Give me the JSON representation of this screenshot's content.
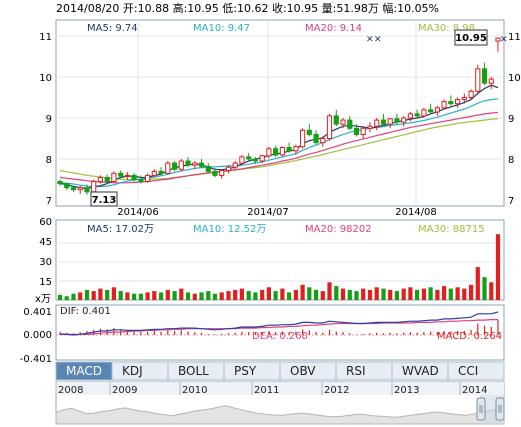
{
  "header": {
    "summary": "2014/08/20 开:10.88 高:10.95 低:10.62 收:10.95 量:51.98万 幅:10.05%"
  },
  "price_panel": {
    "ma_labels": [
      "MA5: 9.74",
      "MA10: 9.47",
      "MA20: 9.14",
      "MA30: 8.98"
    ],
    "ma_colors": [
      "#1d3b6b",
      "#2ab0c8",
      "#e0407a",
      "#9cc23a"
    ],
    "y_ticks": [
      "11",
      "10",
      "9",
      "8",
      "7"
    ],
    "x_ticks": [
      "2014/06",
      "2014/07",
      "2014/08"
    ],
    "callout_high": "10.95",
    "callout_low": "7.13"
  },
  "volume_panel": {
    "ma_labels": [
      "MA5: 17.02万",
      "MA10: 12.52万",
      "MA20: 98202",
      "MA30: 88715"
    ],
    "y_ticks": [
      "60",
      "45",
      "30",
      "15"
    ],
    "unit": "x万"
  },
  "macd_panel": {
    "labels": [
      "DIF: 0.401",
      "DEA: 0.268",
      "MACD: 0.264"
    ],
    "y_ticks": [
      "0.401",
      "0.000",
      "-0.401"
    ]
  },
  "tabs": [
    "MACD",
    "KDJ",
    "BOLL",
    "PSY",
    "OBV",
    "RSI",
    "WVAD",
    "CCI"
  ],
  "active_tab": "MACD",
  "navigator": {
    "years": [
      "2008",
      "2009",
      "2010",
      "2011",
      "2012",
      "2013",
      "2014"
    ]
  },
  "colors": {
    "up": "#e02020",
    "down": "#14a014",
    "grid": "#dfe6ec",
    "border": "#8fa3b5",
    "tab_active": "#5a86b5",
    "tab_bg": "#e6edf4"
  },
  "chart_data": {
    "type": "candlestick",
    "x_range": [
      "2014/05/20",
      "2014/08/20"
    ],
    "ylim": [
      7,
      11
    ],
    "candles": [
      [
        7.45,
        7.5,
        7.35,
        7.4
      ],
      [
        7.4,
        7.42,
        7.25,
        7.3
      ],
      [
        7.3,
        7.35,
        7.2,
        7.25
      ],
      [
        7.25,
        7.35,
        7.15,
        7.3
      ],
      [
        7.3,
        7.38,
        7.13,
        7.2
      ],
      [
        7.2,
        7.5,
        7.18,
        7.45
      ],
      [
        7.45,
        7.6,
        7.4,
        7.55
      ],
      [
        7.55,
        7.62,
        7.4,
        7.45
      ],
      [
        7.45,
        7.7,
        7.42,
        7.65
      ],
      [
        7.65,
        7.72,
        7.52,
        7.58
      ],
      [
        7.58,
        7.68,
        7.5,
        7.6
      ],
      [
        7.6,
        7.65,
        7.45,
        7.5
      ],
      [
        7.5,
        7.6,
        7.4,
        7.45
      ],
      [
        7.45,
        7.65,
        7.42,
        7.6
      ],
      [
        7.6,
        7.75,
        7.55,
        7.7
      ],
      [
        7.7,
        7.8,
        7.6,
        7.65
      ],
      [
        7.65,
        7.95,
        7.62,
        7.9
      ],
      [
        7.9,
        7.95,
        7.7,
        7.75
      ],
      [
        7.75,
        8.0,
        7.7,
        7.95
      ],
      [
        7.95,
        8.05,
        7.8,
        7.85
      ],
      [
        7.85,
        7.95,
        7.75,
        7.9
      ],
      [
        7.9,
        8.0,
        7.78,
        7.82
      ],
      [
        7.82,
        7.9,
        7.65,
        7.7
      ],
      [
        7.7,
        7.78,
        7.55,
        7.6
      ],
      [
        7.6,
        7.75,
        7.52,
        7.72
      ],
      [
        7.72,
        7.85,
        7.65,
        7.8
      ],
      [
        7.8,
        7.95,
        7.75,
        7.9
      ],
      [
        7.9,
        8.1,
        7.85,
        8.05
      ],
      [
        8.05,
        8.15,
        7.95,
        8.0
      ],
      [
        8.0,
        8.05,
        7.88,
        7.95
      ],
      [
        7.95,
        8.1,
        7.9,
        8.08
      ],
      [
        8.08,
        8.3,
        8.02,
        8.25
      ],
      [
        8.25,
        8.32,
        8.05,
        8.1
      ],
      [
        8.1,
        8.3,
        8.05,
        8.28
      ],
      [
        8.28,
        8.4,
        8.15,
        8.2
      ],
      [
        8.2,
        8.35,
        8.1,
        8.3
      ],
      [
        8.3,
        8.75,
        8.25,
        8.7
      ],
      [
        8.7,
        8.85,
        8.55,
        8.6
      ],
      [
        8.6,
        8.7,
        8.35,
        8.4
      ],
      [
        8.4,
        8.55,
        8.3,
        8.5
      ],
      [
        8.5,
        9.1,
        8.45,
        9.05
      ],
      [
        9.05,
        9.2,
        8.8,
        8.85
      ],
      [
        8.85,
        9.0,
        8.75,
        8.95
      ],
      [
        8.95,
        9.05,
        8.7,
        8.75
      ],
      [
        8.75,
        8.85,
        8.55,
        8.6
      ],
      [
        8.6,
        8.8,
        8.5,
        8.75
      ],
      [
        8.75,
        8.9,
        8.65,
        8.8
      ],
      [
        8.8,
        9.0,
        8.7,
        8.95
      ],
      [
        8.95,
        9.1,
        8.8,
        8.85
      ],
      [
        8.85,
        9.0,
        8.75,
        8.98
      ],
      [
        8.98,
        9.1,
        8.85,
        8.9
      ],
      [
        8.9,
        9.05,
        8.8,
        9.0
      ],
      [
        9.0,
        9.15,
        8.92,
        9.1
      ],
      [
        9.1,
        9.2,
        9.0,
        9.05
      ],
      [
        9.05,
        9.25,
        9.0,
        9.2
      ],
      [
        9.2,
        9.35,
        9.1,
        9.15
      ],
      [
        9.15,
        9.3,
        9.05,
        9.25
      ],
      [
        9.25,
        9.45,
        9.2,
        9.4
      ],
      [
        9.4,
        9.55,
        9.3,
        9.35
      ],
      [
        9.35,
        9.5,
        9.25,
        9.45
      ],
      [
        9.45,
        9.6,
        9.35,
        9.5
      ],
      [
        9.5,
        9.7,
        9.45,
        9.65
      ],
      [
        9.65,
        10.3,
        9.6,
        10.2
      ],
      [
        10.2,
        10.35,
        9.8,
        9.85
      ],
      [
        9.85,
        10.0,
        9.7,
        9.95
      ],
      [
        10.88,
        10.95,
        10.62,
        10.95
      ]
    ],
    "ma": {
      "MA5": [
        7.4,
        7.38,
        7.33,
        7.3,
        7.28,
        7.32,
        7.35,
        7.4,
        7.48,
        7.55,
        7.58,
        7.58,
        7.55,
        7.55,
        7.6,
        7.63,
        7.72,
        7.78,
        7.83,
        7.85,
        7.88,
        7.86,
        7.8,
        7.75,
        7.74,
        7.76,
        7.8,
        7.88,
        7.95,
        8.0,
        8.03,
        8.09,
        8.12,
        8.15,
        8.19,
        8.22,
        8.37,
        8.45,
        8.48,
        8.52,
        8.65,
        8.73,
        8.8,
        8.82,
        8.8,
        8.78,
        8.75,
        8.78,
        8.82,
        8.86,
        8.9,
        8.94,
        8.97,
        9.0,
        9.04,
        9.1,
        9.15,
        9.22,
        9.27,
        9.32,
        9.38,
        9.45,
        9.6,
        9.72,
        9.8,
        9.74
      ],
      "MA10": [
        7.42,
        7.41,
        7.39,
        7.36,
        7.34,
        7.33,
        7.33,
        7.34,
        7.37,
        7.42,
        7.46,
        7.49,
        7.51,
        7.53,
        7.56,
        7.59,
        7.63,
        7.67,
        7.71,
        7.74,
        7.77,
        7.79,
        7.8,
        7.81,
        7.82,
        7.83,
        7.84,
        7.85,
        7.87,
        7.9,
        7.93,
        7.97,
        8.01,
        8.05,
        8.09,
        8.13,
        8.21,
        8.28,
        8.34,
        8.4,
        8.47,
        8.54,
        8.6,
        8.65,
        8.69,
        8.72,
        8.75,
        8.77,
        8.79,
        8.82,
        8.84,
        8.86,
        8.88,
        8.91,
        8.94,
        8.98,
        9.02,
        9.07,
        9.12,
        9.17,
        9.22,
        9.28,
        9.36,
        9.42,
        9.45,
        9.47
      ],
      "MA20": [
        7.55,
        7.53,
        7.51,
        7.49,
        7.47,
        7.45,
        7.44,
        7.43,
        7.42,
        7.42,
        7.42,
        7.43,
        7.44,
        7.45,
        7.47,
        7.49,
        7.51,
        7.54,
        7.56,
        7.59,
        7.62,
        7.64,
        7.66,
        7.68,
        7.7,
        7.72,
        7.74,
        7.76,
        7.79,
        7.82,
        7.85,
        7.88,
        7.91,
        7.95,
        7.98,
        8.02,
        8.07,
        8.12,
        8.16,
        8.21,
        8.26,
        8.31,
        8.36,
        8.41,
        8.45,
        8.49,
        8.53,
        8.57,
        8.61,
        8.65,
        8.69,
        8.73,
        8.77,
        8.8,
        8.83,
        8.86,
        8.89,
        8.92,
        8.95,
        8.98,
        9.01,
        9.04,
        9.07,
        9.1,
        9.12,
        9.14
      ],
      "MA30": [
        7.72,
        7.69,
        7.66,
        7.63,
        7.6,
        7.58,
        7.56,
        7.54,
        7.52,
        7.51,
        7.5,
        7.5,
        7.5,
        7.5,
        7.51,
        7.52,
        7.53,
        7.55,
        7.57,
        7.59,
        7.61,
        7.63,
        7.65,
        7.67,
        7.69,
        7.71,
        7.73,
        7.75,
        7.77,
        7.79,
        7.81,
        7.84,
        7.87,
        7.9,
        7.93,
        7.96,
        8.0,
        8.04,
        8.07,
        8.11,
        8.15,
        8.19,
        8.23,
        8.27,
        8.31,
        8.35,
        8.39,
        8.43,
        8.47,
        8.51,
        8.55,
        8.59,
        8.63,
        8.67,
        8.71,
        8.75,
        8.78,
        8.81,
        8.84,
        8.87,
        8.89,
        8.91,
        8.93,
        8.95,
        8.97,
        8.98
      ]
    },
    "volume": [
      4,
      3,
      5,
      6,
      8,
      7,
      9,
      8,
      10,
      7,
      6,
      5,
      5,
      6,
      7,
      6,
      8,
      7,
      9,
      6,
      5,
      6,
      7,
      5,
      6,
      7,
      8,
      9,
      7,
      6,
      8,
      10,
      7,
      9,
      6,
      8,
      12,
      10,
      8,
      7,
      14,
      11,
      9,
      8,
      7,
      9,
      8,
      10,
      9,
      8,
      7,
      9,
      10,
      8,
      9,
      10,
      8,
      11,
      9,
      10,
      9,
      12,
      26,
      18,
      14,
      51.98
    ],
    "macd_hist": [
      0.05,
      0.04,
      0.03,
      0.05,
      0.07,
      0.09,
      0.11,
      0.1,
      0.12,
      0.1,
      0.08,
      0.06,
      0.05,
      0.06,
      0.07,
      0.06,
      0.08,
      0.07,
      0.08,
      0.06,
      0.05,
      0.04,
      0.02,
      0.01,
      0.02,
      0.03,
      0.04,
      0.06,
      0.05,
      0.04,
      0.05,
      0.07,
      0.05,
      0.06,
      0.05,
      0.06,
      0.1,
      0.08,
      0.05,
      0.04,
      0.09,
      0.06,
      0.05,
      0.03,
      0.01,
      0.02,
      0.03,
      0.04,
      0.03,
      0.04,
      0.03,
      0.04,
      0.05,
      0.04,
      0.05,
      0.06,
      0.05,
      0.07,
      0.06,
      0.07,
      0.07,
      0.09,
      0.2,
      0.16,
      0.14,
      0.264
    ],
    "dif": [
      0.02,
      0.01,
      0.0,
      0.01,
      0.03,
      0.05,
      0.07,
      0.07,
      0.09,
      0.09,
      0.08,
      0.08,
      0.08,
      0.09,
      0.1,
      0.1,
      0.11,
      0.11,
      0.12,
      0.12,
      0.12,
      0.11,
      0.1,
      0.09,
      0.1,
      0.11,
      0.12,
      0.14,
      0.14,
      0.14,
      0.15,
      0.17,
      0.17,
      0.18,
      0.18,
      0.19,
      0.22,
      0.22,
      0.21,
      0.21,
      0.24,
      0.23,
      0.22,
      0.21,
      0.2,
      0.2,
      0.21,
      0.22,
      0.22,
      0.22,
      0.22,
      0.23,
      0.24,
      0.24,
      0.25,
      0.26,
      0.26,
      0.28,
      0.28,
      0.29,
      0.3,
      0.31,
      0.37,
      0.37,
      0.37,
      0.401
    ],
    "dea": [
      0.01,
      0.01,
      0.01,
      0.01,
      0.01,
      0.02,
      0.03,
      0.04,
      0.05,
      0.05,
      0.06,
      0.07,
      0.07,
      0.08,
      0.08,
      0.09,
      0.09,
      0.1,
      0.1,
      0.11,
      0.11,
      0.11,
      0.11,
      0.11,
      0.11,
      0.11,
      0.11,
      0.12,
      0.12,
      0.12,
      0.13,
      0.13,
      0.14,
      0.14,
      0.15,
      0.15,
      0.16,
      0.17,
      0.17,
      0.18,
      0.19,
      0.2,
      0.2,
      0.2,
      0.2,
      0.2,
      0.2,
      0.2,
      0.21,
      0.21,
      0.21,
      0.21,
      0.21,
      0.22,
      0.22,
      0.22,
      0.23,
      0.23,
      0.24,
      0.24,
      0.25,
      0.25,
      0.26,
      0.26,
      0.27,
      0.268
    ],
    "nav_trend": [
      0.45,
      0.55,
      0.6,
      0.5,
      0.4,
      0.42,
      0.48,
      0.52,
      0.58,
      0.62,
      0.55,
      0.5,
      0.46,
      0.4,
      0.36,
      0.32,
      0.38,
      0.44,
      0.5,
      0.54,
      0.58,
      0.65,
      0.7,
      0.62,
      0.55,
      0.48,
      0.42,
      0.38,
      0.35,
      0.33,
      0.36,
      0.4,
      0.42,
      0.38,
      0.34,
      0.3,
      0.28,
      0.3,
      0.34,
      0.38,
      0.36,
      0.32,
      0.3,
      0.28,
      0.26,
      0.3,
      0.34,
      0.38,
      0.42,
      0.46,
      0.44,
      0.4,
      0.36,
      0.34,
      0.38,
      0.44,
      0.5,
      0.56,
      0.62
    ]
  }
}
